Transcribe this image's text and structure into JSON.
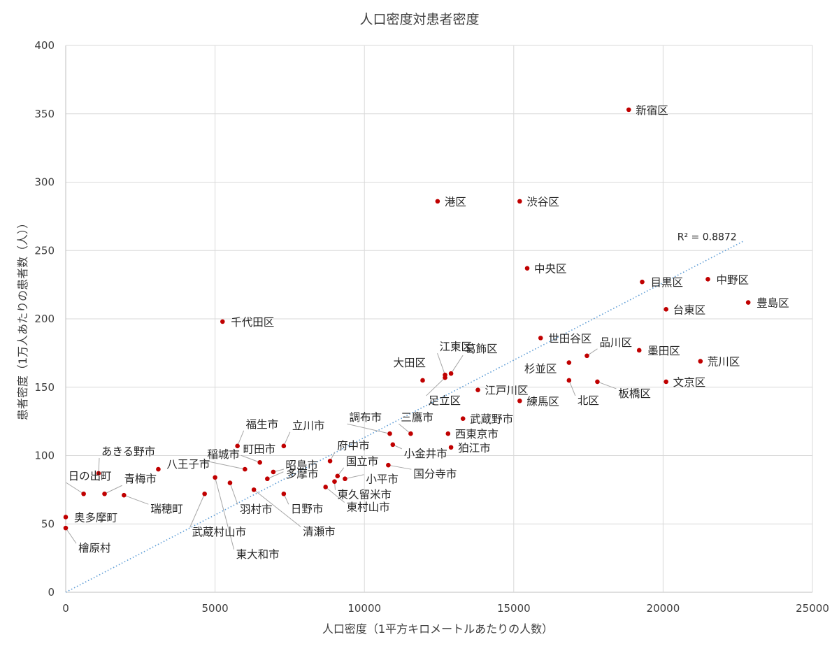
{
  "chart_data": {
    "type": "scatter",
    "title": "人口密度対患者密度",
    "xlabel": "人口密度（1平方キロメートルあたりの人数）",
    "ylabel": "患者密度（1万人あたりの患者数（人））",
    "xlim": [
      0,
      25000
    ],
    "ylim": [
      0,
      400
    ],
    "x_ticks": [
      0,
      5000,
      10000,
      15000,
      20000,
      25000
    ],
    "y_ticks": [
      0,
      50,
      100,
      150,
      200,
      250,
      300,
      350,
      400
    ],
    "grid": true,
    "legend": "none",
    "point_color": "#c00000",
    "trendline": {
      "type": "linear",
      "through_origin": true,
      "slope": 0.01132,
      "x_range": [
        0,
        22700
      ],
      "r_squared_label": "R² = 0.8872",
      "color": "#5b9bd5"
    },
    "points": [
      {
        "name": "新宿区",
        "x": 18850,
        "y": 353
      },
      {
        "name": "港区",
        "x": 12450,
        "y": 286
      },
      {
        "name": "渋谷区",
        "x": 15200,
        "y": 286
      },
      {
        "name": "中央区",
        "x": 15450,
        "y": 237
      },
      {
        "name": "目黒区",
        "x": 19300,
        "y": 227
      },
      {
        "name": "中野区",
        "x": 21500,
        "y": 229
      },
      {
        "name": "豊島区",
        "x": 22850,
        "y": 212
      },
      {
        "name": "台東区",
        "x": 20100,
        "y": 207
      },
      {
        "name": "千代田区",
        "x": 5250,
        "y": 198
      },
      {
        "name": "世田谷区",
        "x": 15900,
        "y": 186
      },
      {
        "name": "品川区",
        "x": 17450,
        "y": 173
      },
      {
        "name": "墨田区",
        "x": 19200,
        "y": 177
      },
      {
        "name": "荒川区",
        "x": 21250,
        "y": 169
      },
      {
        "name": "杉並区",
        "x": 16850,
        "y": 168
      },
      {
        "name": "文京区",
        "x": 20100,
        "y": 154
      },
      {
        "name": "北区",
        "x": 16850,
        "y": 155
      },
      {
        "name": "板橋区",
        "x": 17800,
        "y": 154
      },
      {
        "name": "江東区",
        "x": 12700,
        "y": 159
      },
      {
        "name": "葛飾区",
        "x": 12900,
        "y": 160
      },
      {
        "name": "足立区",
        "x": 12700,
        "y": 157
      },
      {
        "name": "大田区",
        "x": 11950,
        "y": 155
      },
      {
        "name": "江戸川区",
        "x": 13800,
        "y": 148
      },
      {
        "name": "練馬区",
        "x": 15200,
        "y": 140
      },
      {
        "name": "武蔵野市",
        "x": 13300,
        "y": 127
      },
      {
        "name": "調布市",
        "x": 10850,
        "y": 116
      },
      {
        "name": "三鷹市",
        "x": 11550,
        "y": 116
      },
      {
        "name": "西東京市",
        "x": 12800,
        "y": 116
      },
      {
        "name": "小金井市",
        "x": 10950,
        "y": 108
      },
      {
        "name": "狛江市",
        "x": 12900,
        "y": 106
      },
      {
        "name": "府中市",
        "x": 8850,
        "y": 96
      },
      {
        "name": "国立市",
        "x": 9100,
        "y": 85
      },
      {
        "name": "国分寺市",
        "x": 10800,
        "y": 93
      },
      {
        "name": "小平市",
        "x": 9350,
        "y": 83
      },
      {
        "name": "東久留米市",
        "x": 9000,
        "y": 81
      },
      {
        "name": "東村山市",
        "x": 8700,
        "y": 77
      },
      {
        "name": "福生市",
        "x": 5750,
        "y": 107
      },
      {
        "name": "立川市",
        "x": 7300,
        "y": 107
      },
      {
        "name": "町田市",
        "x": 6500,
        "y": 95
      },
      {
        "name": "稲城市",
        "x": 6000,
        "y": 90
      },
      {
        "name": "昭島市",
        "x": 6750,
        "y": 83
      },
      {
        "name": "多摩市",
        "x": 6950,
        "y": 88
      },
      {
        "name": "日野市",
        "x": 7300,
        "y": 72
      },
      {
        "name": "八王子市",
        "x": 3100,
        "y": 90
      },
      {
        "name": "羽村市",
        "x": 5500,
        "y": 80
      },
      {
        "name": "清瀬市",
        "x": 6300,
        "y": 75
      },
      {
        "name": "武蔵村山市",
        "x": 4650,
        "y": 72
      },
      {
        "name": "東大和市",
        "x": 5000,
        "y": 84
      },
      {
        "name": "あきる野市",
        "x": 1100,
        "y": 87
      },
      {
        "name": "日の出町",
        "x": 600,
        "y": 72
      },
      {
        "name": "青梅市",
        "x": 1300,
        "y": 72
      },
      {
        "name": "瑞穂町",
        "x": 1950,
        "y": 71
      },
      {
        "name": "奥多摩町",
        "x": 0,
        "y": 55
      },
      {
        "name": "檜原村",
        "x": 0,
        "y": 47
      }
    ]
  }
}
